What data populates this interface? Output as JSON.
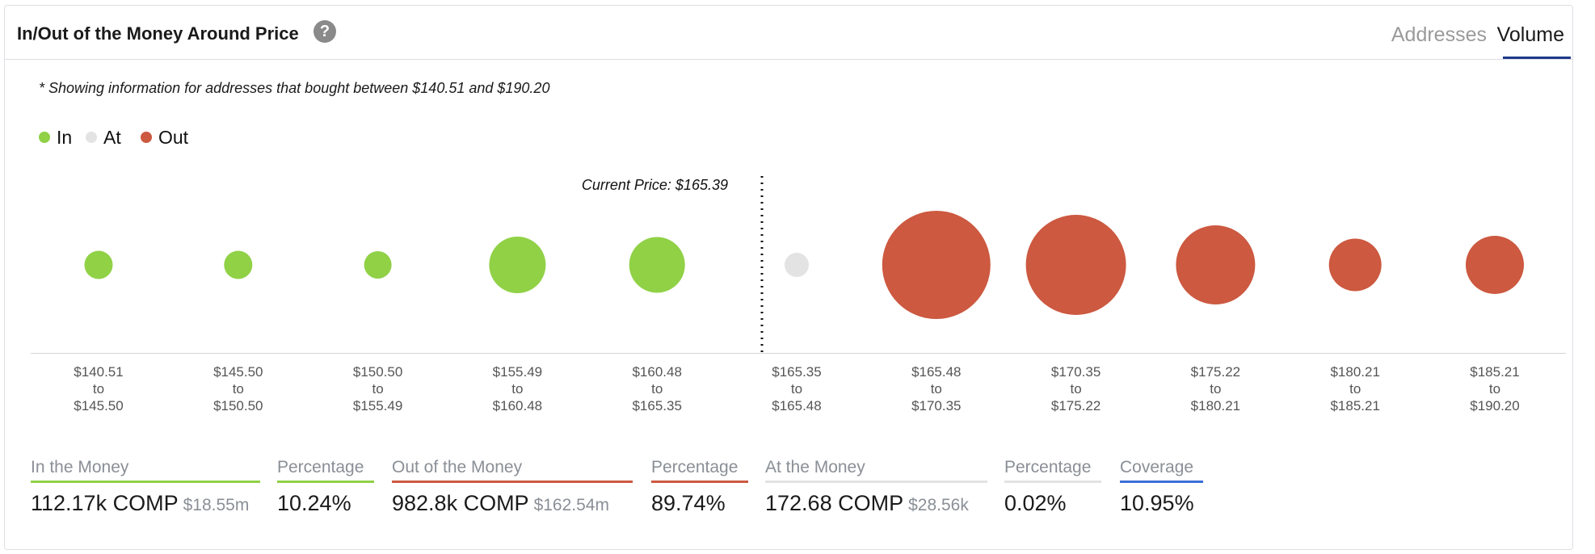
{
  "header": {
    "title": "In/Out of the Money Around Price",
    "help_glyph": "?",
    "tabs": [
      {
        "label": "Addresses",
        "active": false
      },
      {
        "label": "Volume",
        "active": true
      }
    ]
  },
  "note": "* Showing information for addresses that bought between $140.51 and $190.20",
  "legend": [
    {
      "label": "In",
      "color": "#90d146"
    },
    {
      "label": "At",
      "color": "#e3e3e3"
    },
    {
      "label": "Out",
      "color": "#cc5940"
    }
  ],
  "chart_data": {
    "type": "scatter",
    "current_price_label": "Current Price: $165.39",
    "buckets": [
      {
        "from": "$140.51",
        "to": "$145.50",
        "status": "in",
        "size": 35
      },
      {
        "from": "$145.50",
        "to": "$150.50",
        "status": "in",
        "size": 35
      },
      {
        "from": "$150.50",
        "to": "$155.49",
        "status": "in",
        "size": 34
      },
      {
        "from": "$155.49",
        "to": "$160.48",
        "status": "in",
        "size": 70
      },
      {
        "from": "$160.48",
        "to": "$165.35",
        "status": "in",
        "size": 69
      },
      {
        "from": "$165.35",
        "to": "$165.48",
        "status": "at",
        "size": 30
      },
      {
        "from": "$165.48",
        "to": "$170.35",
        "status": "out",
        "size": 134
      },
      {
        "from": "$170.35",
        "to": "$175.22",
        "status": "out",
        "size": 124
      },
      {
        "from": "$175.22",
        "to": "$180.21",
        "status": "out",
        "size": 98
      },
      {
        "from": "$180.21",
        "to": "$185.21",
        "status": "out",
        "size": 65
      },
      {
        "from": "$185.21",
        "to": "$190.20",
        "status": "out",
        "size": 72
      }
    ],
    "to_word": "to",
    "colors": {
      "in": "#90d146",
      "at": "#e3e3e3",
      "out": "#cc5940"
    }
  },
  "stats": [
    {
      "label": "In the Money",
      "value": "112.17k COMP",
      "sub": "$18.55m",
      "color": "#90d146"
    },
    {
      "label": "Percentage",
      "value": "10.24%",
      "sub": "",
      "color": "#90d146"
    },
    {
      "label": "Out of the Money",
      "value": "982.8k COMP",
      "sub": "$162.54m",
      "color": "#cc5940"
    },
    {
      "label": "Percentage",
      "value": "89.74%",
      "sub": "",
      "color": "#cc5940"
    },
    {
      "label": "At the Money",
      "value": "172.68 COMP",
      "sub": "$28.56k",
      "color": "#e3e3e3"
    },
    {
      "label": "Percentage",
      "value": "0.02%",
      "sub": "",
      "color": "#e3e3e3"
    },
    {
      "label": "Coverage",
      "value": "10.95%",
      "sub": "",
      "color": "#3a6fd8"
    }
  ]
}
